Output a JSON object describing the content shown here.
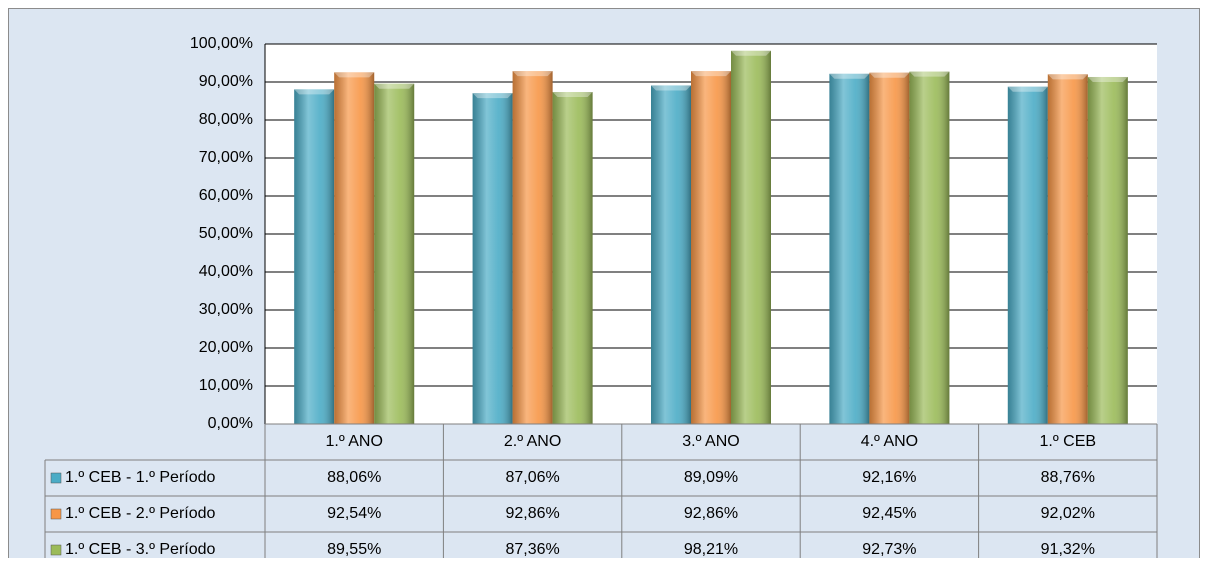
{
  "chart_data": {
    "type": "bar",
    "categories": [
      "1.º ANO",
      "2.º ANO",
      "3.º ANO",
      "4.º ANO",
      "1.º CEB"
    ],
    "series": [
      {
        "name": "1.º CEB - 1.º Período",
        "color": "#4bacc6",
        "values": [
          88.06,
          87.06,
          89.09,
          92.16,
          88.76
        ],
        "value_labels": [
          "88,06%",
          "87,06%",
          "89,09%",
          "92,16%",
          "88,76%"
        ]
      },
      {
        "name": "1.º CEB - 2.º Período",
        "color": "#f79646",
        "values": [
          92.54,
          92.86,
          92.86,
          92.45,
          92.02
        ],
        "value_labels": [
          "92,54%",
          "92,86%",
          "92,86%",
          "92,45%",
          "92,02%"
        ]
      },
      {
        "name": "1.º CEB - 3.º Período",
        "color": "#9bbb59",
        "values": [
          89.55,
          87.36,
          98.21,
          92.73,
          91.32
        ],
        "value_labels": [
          "89,55%",
          "87,36%",
          "98,21%",
          "92,73%",
          "91,32%"
        ]
      }
    ],
    "ylim": [
      0,
      100
    ],
    "yticks": [
      {
        "value": 0,
        "label": "0,00%"
      },
      {
        "value": 10,
        "label": "10,00%"
      },
      {
        "value": 20,
        "label": "20,00%"
      },
      {
        "value": 30,
        "label": "30,00%"
      },
      {
        "value": 40,
        "label": "40,00%"
      },
      {
        "value": 50,
        "label": "50,00%"
      },
      {
        "value": 60,
        "label": "60,00%"
      },
      {
        "value": 70,
        "label": "70,00%"
      },
      {
        "value": 80,
        "label": "80,00%"
      },
      {
        "value": 90,
        "label": "90,00%"
      },
      {
        "value": 100,
        "label": "100,00%"
      }
    ],
    "grid": true
  }
}
